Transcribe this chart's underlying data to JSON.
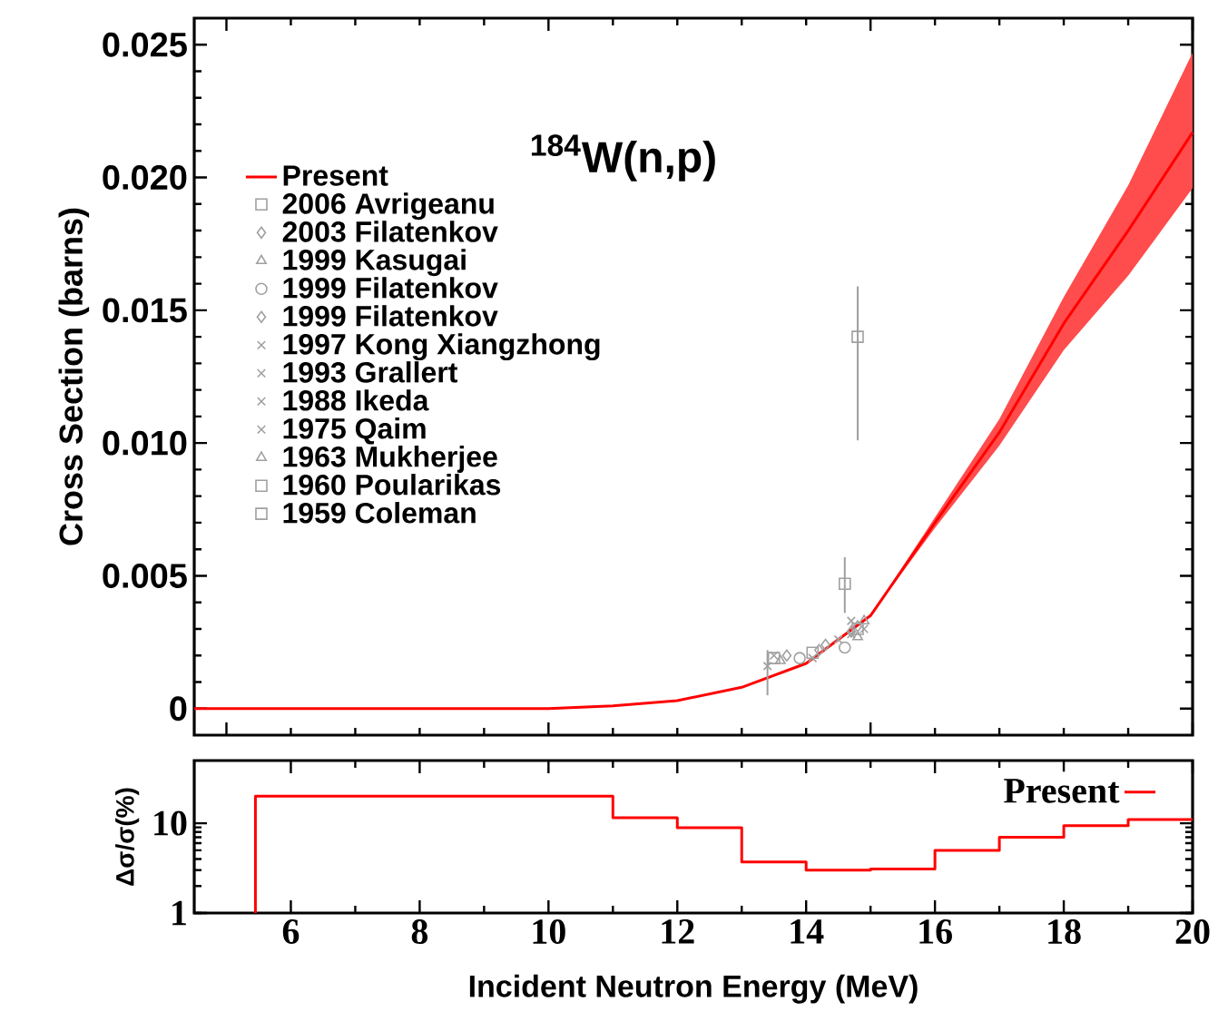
{
  "chart_data": [
    {
      "type": "line",
      "title": "$^{184}$W(n,p)",
      "ylabel": "Cross Section (barns)",
      "xlim": [
        4.5,
        20
      ],
      "ylim": [
        -0.001,
        0.026
      ],
      "xticks": [
        5,
        10,
        15,
        20
      ],
      "yticks": [
        0,
        0.005,
        {
          "value": 0.01,
          "label": "0.010"
        },
        0.015,
        {
          "value": 0.02,
          "label": "0.020"
        },
        0.025
      ],
      "tick_labels": "y",
      "legend": "top left",
      "grid": false,
      "series": [
        {
          "name": "Present",
          "type": "line",
          "color": "#ff0000",
          "x": [
            4.5,
            6,
            8,
            10,
            11,
            12,
            13,
            14,
            15,
            16,
            17,
            18,
            19,
            20
          ],
          "values": [
            0,
            0,
            0,
            0,
            0.0001,
            0.0003,
            0.0008,
            0.0017,
            0.0035,
            0.007,
            0.0104,
            0.0145,
            0.018,
            0.0217
          ],
          "lower": [
            0,
            0,
            0,
            0,
            0.0001,
            0.0003,
            0.0008,
            0.0017,
            0.0035,
            0.0068,
            0.0099,
            0.0135,
            0.0163,
            0.0196
          ],
          "upper": [
            0,
            0,
            0,
            0,
            0.0001,
            0.0003,
            0.0008,
            0.0017,
            0.0035,
            0.0072,
            0.0109,
            0.0155,
            0.0197,
            0.0247
          ]
        },
        {
          "name": "2006 Avrigeanu",
          "type": "scatter",
          "marker": "square",
          "color": "#a0a0a0",
          "x": [
            13.5,
            14.1,
            14.8
          ],
          "values": [
            0.0019,
            0.0021,
            0.003
          ]
        },
        {
          "name": "2003 Filatenkov",
          "type": "scatter",
          "marker": "diamond",
          "color": "#a0a0a0",
          "x": [
            13.7,
            14.3,
            14.8
          ],
          "values": [
            0.002,
            0.0024,
            0.0031
          ]
        },
        {
          "name": "1999 Kasugai",
          "type": "scatter",
          "marker": "triangle",
          "color": "#a0a0a0",
          "x": [
            13.6,
            14.9
          ],
          "values": [
            0.0018,
            0.0033
          ]
        },
        {
          "name": "1999 Filatenkov",
          "type": "scatter",
          "marker": "circle",
          "color": "#a0a0a0",
          "x": [
            13.9,
            14.6
          ],
          "values": [
            0.0019,
            0.0023
          ]
        },
        {
          "name": "1999 Filatenkov",
          "type": "scatter",
          "marker": "diamond",
          "color": "#a0a0a0",
          "x": [
            14.2,
            14.7
          ],
          "values": [
            0.0022,
            0.0029
          ]
        },
        {
          "name": "1997 Kong Xiangzhong",
          "type": "scatter",
          "marker": "cross",
          "color": "#a0a0a0",
          "x": [
            13.4,
            14.5
          ],
          "values": [
            0.0016,
            0.0026
          ],
          "errors": [
            [
              0.0005,
              0.0022
            ],
            null
          ]
        },
        {
          "name": "1993 Grallert",
          "type": "scatter",
          "marker": "cross",
          "color": "#a0a0a0",
          "x": [
            14.7
          ],
          "values": [
            0.0028
          ]
        },
        {
          "name": "1988 Ikeda",
          "type": "scatter",
          "marker": "cross",
          "color": "#a0a0a0",
          "x": [
            13.5,
            14.1,
            14.9
          ],
          "values": [
            0.002,
            0.0019,
            0.003
          ]
        },
        {
          "name": "1975 Qaim",
          "type": "scatter",
          "marker": "cross",
          "color": "#a0a0a0",
          "x": [
            14.7
          ],
          "values": [
            0.0033
          ]
        },
        {
          "name": "1963 Mukherjee",
          "type": "scatter",
          "marker": "triangle",
          "color": "#a0a0a0",
          "x": [
            14.8
          ],
          "values": [
            0.0027
          ]
        },
        {
          "name": "1960 Poularikas",
          "type": "scatter",
          "marker": "square",
          "color": "#a0a0a0",
          "x": [
            14.8
          ],
          "values": [
            0.014
          ],
          "errors": [
            [
              0.0101,
              0.0159
            ]
          ]
        },
        {
          "name": "1959 Coleman",
          "type": "scatter",
          "marker": "square",
          "color": "#a0a0a0",
          "x": [
            14.6
          ],
          "values": [
            0.0047
          ],
          "errors": [
            [
              0.0036,
              0.0057
            ]
          ]
        }
      ]
    },
    {
      "type": "step",
      "xlabel": "Incident Neutron Energy (MeV)",
      "ylabel": "Δσ/σ(%)",
      "log": "y",
      "xlim": [
        4.5,
        20
      ],
      "ylim": [
        1,
        50
      ],
      "xticks": [
        6,
        8,
        10,
        12,
        14,
        16,
        18,
        20
      ],
      "yticks": [
        1,
        10
      ],
      "legend": "top right",
      "grid": false,
      "series": [
        {
          "name": "Present",
          "color": "#ff0000",
          "x": [
            5.45,
            5.45,
            11,
            12,
            13,
            14,
            15,
            16,
            17,
            18,
            19,
            20
          ],
          "values": [
            1,
            20,
            11.5,
            8.9,
            3.7,
            3.0,
            3.1,
            5.0,
            7.0,
            9.4,
            11.0,
            11.0
          ]
        }
      ]
    }
  ]
}
